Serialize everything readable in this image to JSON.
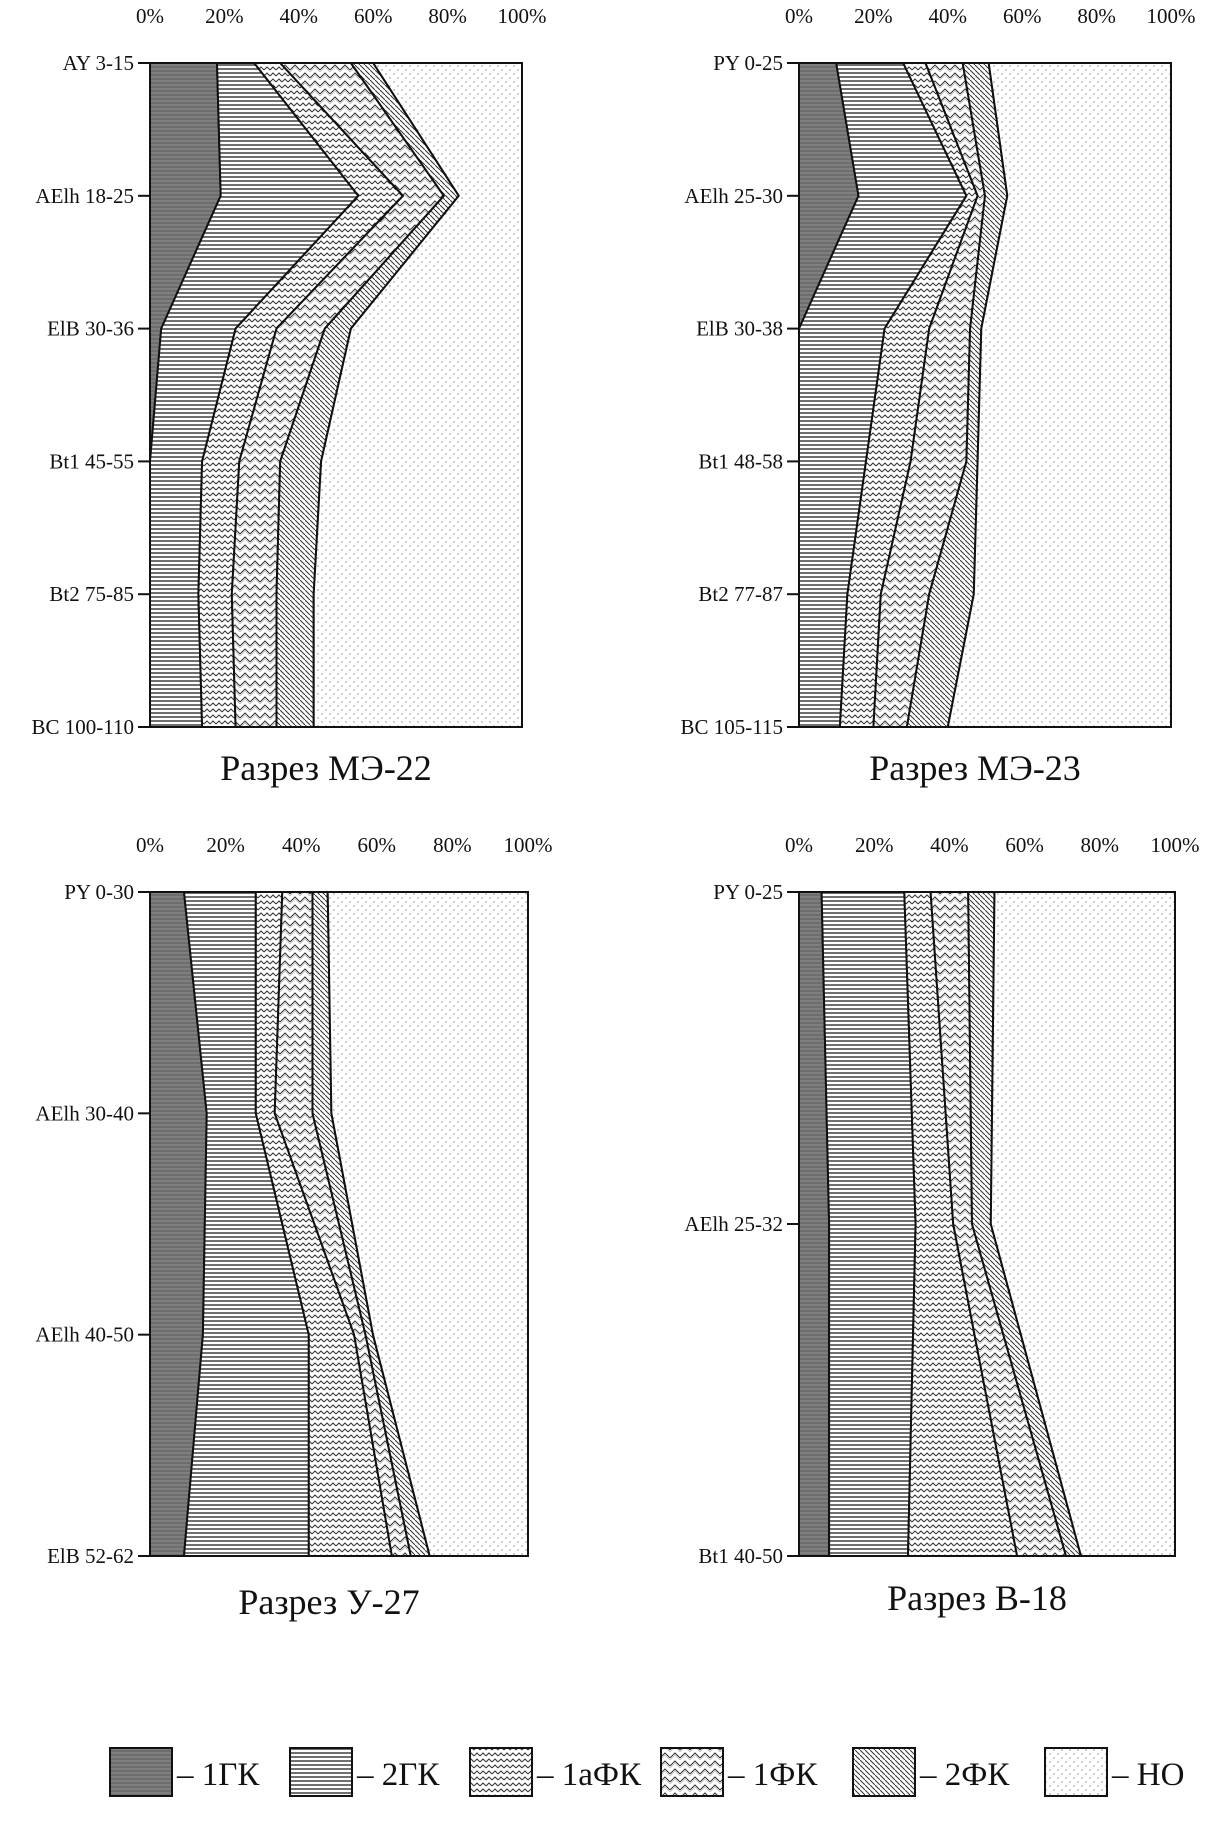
{
  "chart_data": [
    {
      "type": "area",
      "orientation": "horizontal-stacked-percent",
      "title": "Разрез МЭ-22",
      "xticks": [
        "0%",
        "20%",
        "40%",
        "60%",
        "80%",
        "100%"
      ],
      "xlim": [
        0,
        100
      ],
      "categories": [
        "AY 3-15",
        "AElh 18-25",
        "ElB 30-36",
        "Bt1 45-55",
        "Bt2 75-85",
        "BC 100-110"
      ],
      "series": [
        {
          "name": "1ГК",
          "values": [
            18,
            19,
            3,
            0,
            0,
            0
          ]
        },
        {
          "name": "2ГК",
          "values": [
            10,
            37,
            20,
            14,
            13,
            14
          ]
        },
        {
          "name": "1аФК",
          "values": [
            7,
            12,
            11,
            10,
            9,
            9
          ]
        },
        {
          "name": "1ФК",
          "values": [
            19,
            11,
            13,
            11,
            12,
            11
          ]
        },
        {
          "name": "2ФК",
          "values": [
            6,
            4,
            7,
            11,
            10,
            10
          ]
        },
        {
          "name": "НО",
          "values": [
            40,
            17,
            46,
            54,
            56,
            56
          ]
        }
      ]
    },
    {
      "type": "area",
      "orientation": "horizontal-stacked-percent",
      "title": "Разрез МЭ-23",
      "xticks": [
        "0%",
        "20%",
        "40%",
        "60%",
        "80%",
        "100%"
      ],
      "xlim": [
        0,
        100
      ],
      "categories": [
        "PY 0-25",
        "AElh 25-30",
        "ElB 30-38",
        "Bt1 48-58",
        "Bt2 77-87",
        "BC 105-115"
      ],
      "series": [
        {
          "name": "1ГК",
          "values": [
            10,
            16,
            0,
            0,
            0,
            0
          ]
        },
        {
          "name": "2ГК",
          "values": [
            18,
            29,
            23,
            18,
            13,
            11
          ]
        },
        {
          "name": "1аФК",
          "values": [
            6,
            3,
            12,
            12,
            9,
            9
          ]
        },
        {
          "name": "1ФК",
          "values": [
            10,
            2,
            11,
            15,
            13,
            9
          ]
        },
        {
          "name": "2ФК",
          "values": [
            7,
            6,
            3,
            3,
            12,
            11
          ]
        },
        {
          "name": "НО",
          "values": [
            49,
            44,
            51,
            52,
            53,
            60
          ]
        }
      ]
    },
    {
      "type": "area",
      "orientation": "horizontal-stacked-percent",
      "title": "Разрез У-27",
      "xticks": [
        "0%",
        "20%",
        "40%",
        "60%",
        "80%",
        "100%"
      ],
      "xlim": [
        0,
        100
      ],
      "categories": [
        "PY 0-30",
        "AElh 30-40",
        "AElh 40-50",
        "ElB 52-62"
      ],
      "series": [
        {
          "name": "1ГК",
          "values": [
            9,
            15,
            14,
            9
          ]
        },
        {
          "name": "2ГК",
          "values": [
            19,
            13,
            28,
            33
          ]
        },
        {
          "name": "1аФК",
          "values": [
            7,
            5,
            12,
            22
          ]
        },
        {
          "name": "1ФК",
          "values": [
            8,
            10,
            3,
            5
          ]
        },
        {
          "name": "2ФК",
          "values": [
            4,
            5,
            2,
            5
          ]
        },
        {
          "name": "НО",
          "values": [
            53,
            52,
            41,
            26
          ]
        }
      ]
    },
    {
      "type": "area",
      "orientation": "horizontal-stacked-percent",
      "title": "Разрез В-18",
      "xticks": [
        "0%",
        "20%",
        "40%",
        "60%",
        "80%",
        "100%"
      ],
      "xlim": [
        0,
        100
      ],
      "categories": [
        "PY 0-25",
        "AElh 25-32",
        "Bt1 40-50"
      ],
      "series": [
        {
          "name": "1ГК",
          "values": [
            6,
            8,
            8
          ]
        },
        {
          "name": "2ГК",
          "values": [
            22,
            23,
            21
          ]
        },
        {
          "name": "1аФК",
          "values": [
            7,
            10,
            29
          ]
        },
        {
          "name": "1ФК",
          "values": [
            10,
            5,
            13
          ]
        },
        {
          "name": "2ФК",
          "values": [
            7,
            5,
            4
          ]
        },
        {
          "name": "НО",
          "values": [
            48,
            49,
            25
          ]
        }
      ]
    }
  ],
  "legend": [
    {
      "label": "– 1ГК"
    },
    {
      "label": "– 2ГК"
    },
    {
      "label": "– 1аФК"
    },
    {
      "label": "– 1ФК"
    },
    {
      "label": "– 2ФК"
    },
    {
      "label": "– НО"
    }
  ],
  "colors": {
    "1ГК": "#6d6d6d",
    "2ГК": "#ffffff",
    "1аФК": "#ffffff",
    "1ФК": "#ffffff",
    "2ФК": "#ffffff",
    "НО": "#ffffff",
    "stroke": "#111111"
  },
  "patterns": [
    "dark-gray-hlines",
    "horizontal-lines",
    "zigzag-small",
    "zigzag-large",
    "diagonal-lines",
    "dots"
  ]
}
